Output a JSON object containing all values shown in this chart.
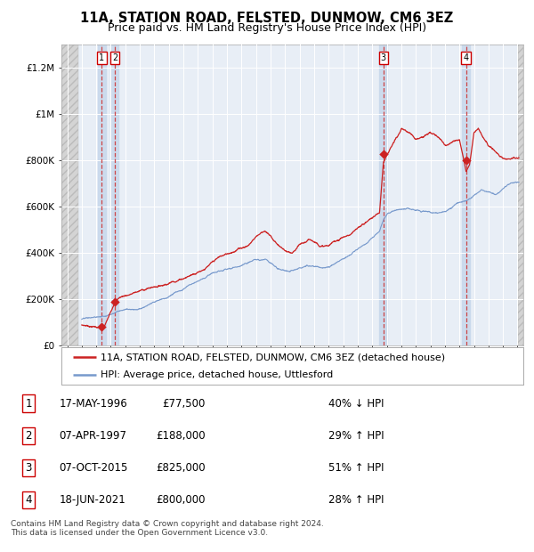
{
  "title": "11A, STATION ROAD, FELSTED, DUNMOW, CM6 3EZ",
  "subtitle": "Price paid vs. HM Land Registry's House Price Index (HPI)",
  "ylim": [
    0,
    1300000
  ],
  "yticks": [
    0,
    200000,
    400000,
    600000,
    800000,
    1000000,
    1200000
  ],
  "ytick_labels": [
    "£0",
    "£200K",
    "£400K",
    "£600K",
    "£800K",
    "£1M",
    "£1.2M"
  ],
  "xlim_start": 1993.6,
  "xlim_end": 2025.4,
  "data_start": 1994.75,
  "data_end": 2025.0,
  "sale_dates": [
    1996.38,
    1997.27,
    2015.77,
    2021.46
  ],
  "sale_prices": [
    77500,
    188000,
    825000,
    800000
  ],
  "sale_labels": [
    "1",
    "2",
    "3",
    "4"
  ],
  "red_line_color": "#cc2222",
  "blue_line_color": "#7799cc",
  "dot_color": "#cc2222",
  "bg_plot": "#e8eef6",
  "bg_hatch": "#d8d8d8",
  "bg_shade": "#c8d8ec",
  "grid_color": "#ffffff",
  "vline_color": "#cc3333",
  "legend_label_red": "11A, STATION ROAD, FELSTED, DUNMOW, CM6 3EZ (detached house)",
  "legend_label_blue": "HPI: Average price, detached house, Uttlesford",
  "table_rows": [
    [
      "1",
      "17-MAY-1996",
      "£77,500",
      "40% ↓ HPI"
    ],
    [
      "2",
      "07-APR-1997",
      "£188,000",
      "29% ↑ HPI"
    ],
    [
      "3",
      "07-OCT-2015",
      "£825,000",
      "51% ↑ HPI"
    ],
    [
      "4",
      "18-JUN-2021",
      "£800,000",
      "28% ↑ HPI"
    ]
  ],
  "footer": "Contains HM Land Registry data © Crown copyright and database right 2024.\nThis data is licensed under the Open Government Licence v3.0.",
  "title_fontsize": 10.5,
  "subtitle_fontsize": 9,
  "tick_fontsize": 7.5,
  "legend_fontsize": 8,
  "table_fontsize": 8.5
}
